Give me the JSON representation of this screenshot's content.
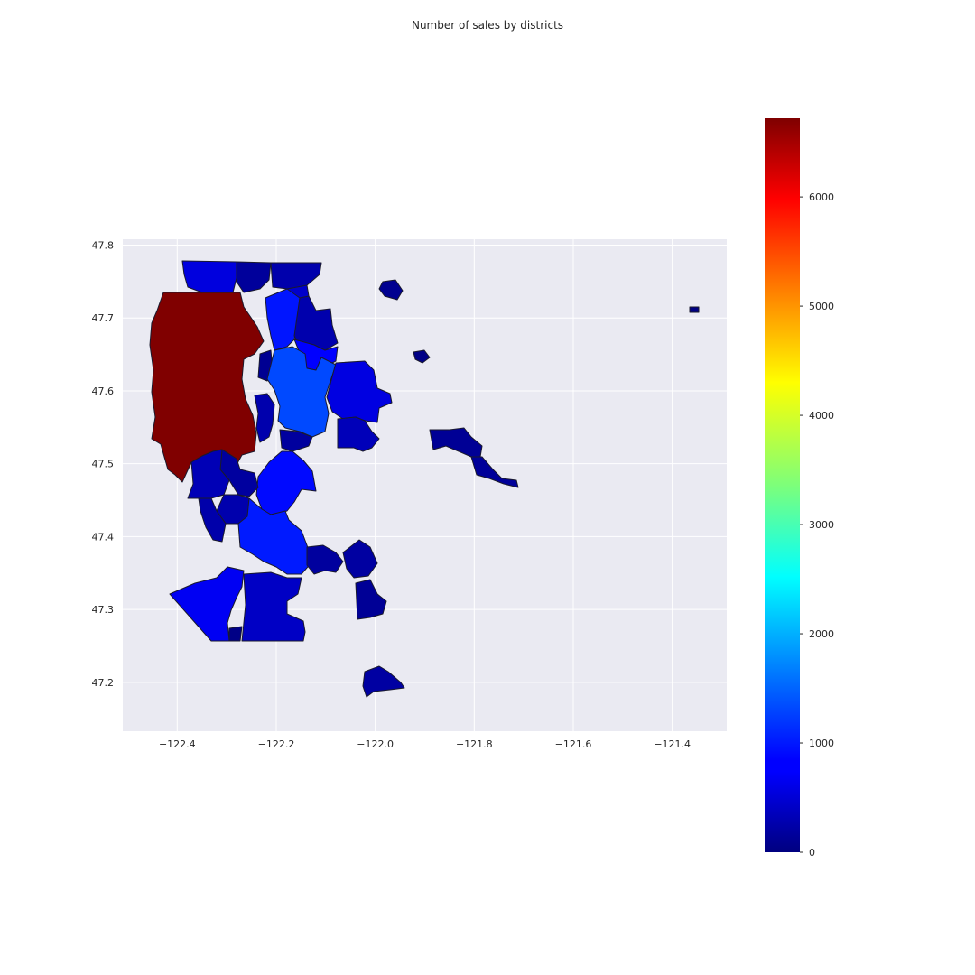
{
  "chart_data": {
    "type": "choropleth",
    "title": "Number of sales by districts",
    "xticks": [
      "−122.4",
      "−122.2",
      "−122.0",
      "−121.8",
      "−121.6",
      "−121.4"
    ],
    "yticks": [
      "47.2",
      "47.3",
      "47.4",
      "47.5",
      "47.6",
      "47.7",
      "47.8"
    ],
    "xlim": [
      -122.51,
      -121.29
    ],
    "ylim": [
      47.133,
      47.808
    ],
    "grid": true,
    "colorbar": {
      "colormap": "jet",
      "range": [
        0,
        6720
      ],
      "ticks": [
        "0",
        "1000",
        "2000",
        "3000",
        "4000",
        "5000",
        "6000"
      ],
      "placement": "right"
    },
    "districts": [
      {
        "id": "seattle",
        "sales": 6720
      },
      {
        "id": "bellevue",
        "sales": 1320
      },
      {
        "id": "kent",
        "sales": 1010
      },
      {
        "id": "kirkland",
        "sales": 980
      },
      {
        "id": "renton",
        "sales": 900
      },
      {
        "id": "redmond",
        "sales": 840
      },
      {
        "id": "federal-way",
        "sales": 760
      },
      {
        "id": "auburn",
        "sales": 460
      },
      {
        "id": "shoreline",
        "sales": 620
      },
      {
        "id": "burien",
        "sales": 360
      },
      {
        "id": "sammamish",
        "sales": 640
      },
      {
        "id": "issaquah",
        "sales": 380
      },
      {
        "id": "mercer-island",
        "sales": 300
      },
      {
        "id": "bothell",
        "sales": 500
      },
      {
        "id": "woodinville",
        "sales": 300
      },
      {
        "id": "maple-valley",
        "sales": 220
      },
      {
        "id": "covington",
        "sales": 200
      },
      {
        "id": "black-diamond",
        "sales": 150
      },
      {
        "id": "enumclaw",
        "sales": 230
      },
      {
        "id": "north-bend",
        "sales": 170
      },
      {
        "id": "snoqualmie",
        "sales": 140
      },
      {
        "id": "duvall",
        "sales": 110
      },
      {
        "id": "carnation",
        "sales": 40
      },
      {
        "id": "skykomish",
        "sales": 20
      },
      {
        "id": "seatac",
        "sales": 300
      },
      {
        "id": "tukwila",
        "sales": 210
      },
      {
        "id": "des-moines",
        "sales": 280
      },
      {
        "id": "kenmore",
        "sales": 290
      },
      {
        "id": "lake-forest-park",
        "sales": 180
      },
      {
        "id": "newcastle",
        "sales": 200
      },
      {
        "id": "medina",
        "sales": 120
      },
      {
        "id": "milton",
        "sales": 40
      }
    ]
  }
}
